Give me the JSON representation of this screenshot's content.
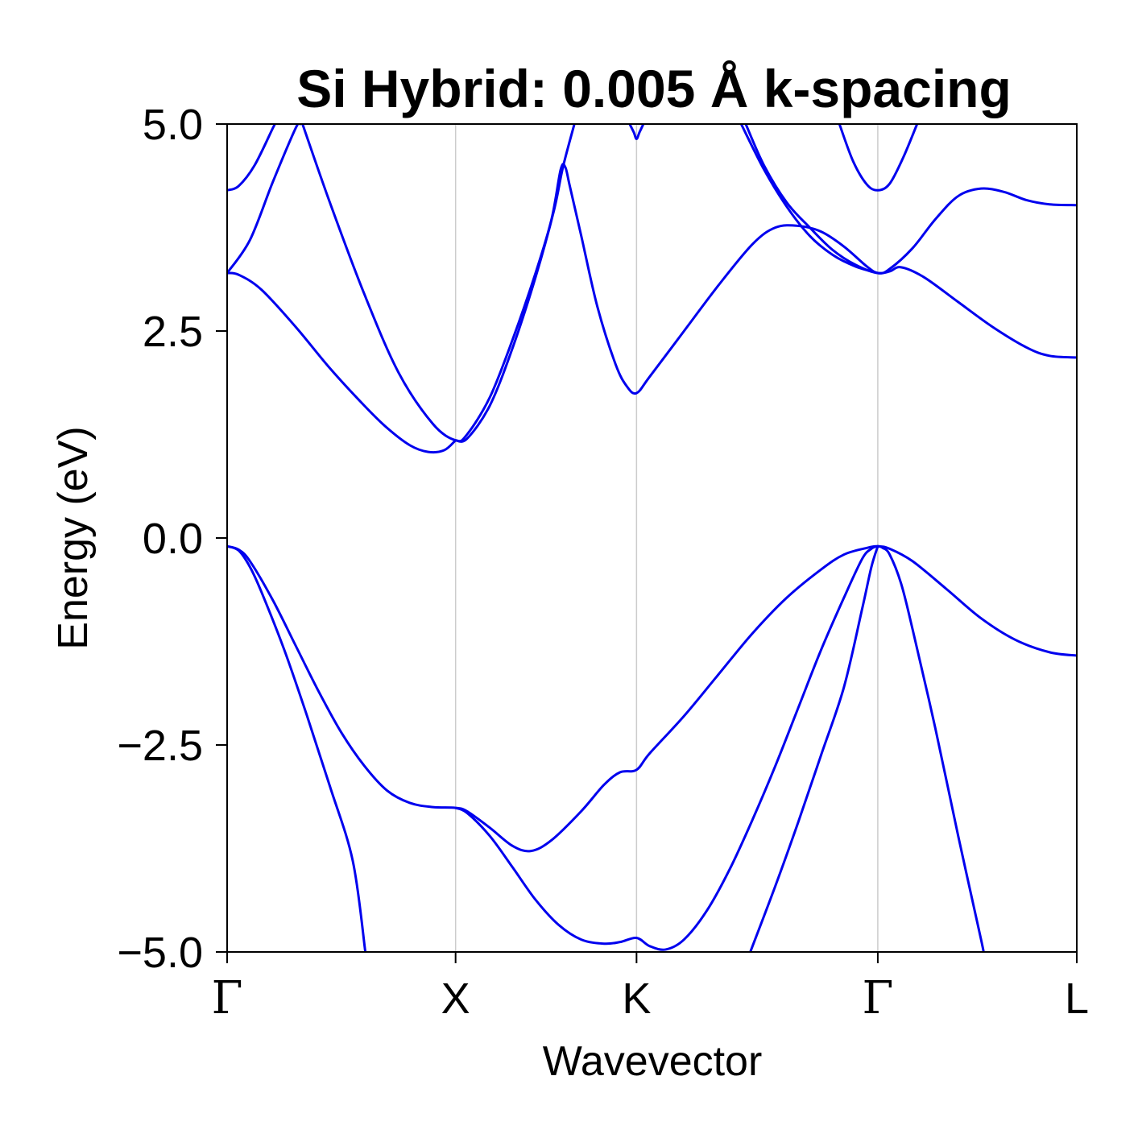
{
  "chart_data": {
    "type": "line",
    "title": "Si Hybrid: 0.005 Å k-spacing",
    "xlabel": "Wavevector",
    "ylabel": "Energy (eV)",
    "ylim": [
      -5.0,
      5.0
    ],
    "xlim": [
      0,
      3.719
    ],
    "yticks": [
      {
        "value": -5.0,
        "label": "−5.0"
      },
      {
        "value": -2.5,
        "label": "−2.5"
      },
      {
        "value": 0.0,
        "label": "0.0"
      },
      {
        "value": 2.5,
        "label": "2.5"
      },
      {
        "value": 5.0,
        "label": "5.0"
      }
    ],
    "kpoints": [
      {
        "label": "Γ",
        "x": 0.0,
        "font": "serif"
      },
      {
        "label": "X",
        "x": 1.0,
        "font": "sans"
      },
      {
        "label": "K",
        "x": 1.792,
        "font": "sans"
      },
      {
        "label": "Γ",
        "x": 2.848,
        "font": "serif"
      },
      {
        "label": "L",
        "x": 3.719,
        "font": "sans"
      }
    ],
    "line_color": "#0000ee",
    "grid_color": "#cccccc",
    "series": [
      {
        "values": [
          [
            0,
            -0.1
          ],
          [
            0.05,
            -0.15
          ],
          [
            0.1,
            -0.35
          ],
          [
            0.15,
            -0.65
          ],
          [
            0.25,
            -1.35
          ],
          [
            0.35,
            -2.15
          ],
          [
            0.45,
            -3.0
          ],
          [
            0.55,
            -3.9
          ],
          [
            0.605,
            -5.0
          ]
        ]
      },
      {
        "values": [
          [
            0,
            -0.1
          ],
          [
            0.05,
            -0.14
          ],
          [
            0.1,
            -0.28
          ],
          [
            0.2,
            -0.75
          ],
          [
            0.3,
            -1.3
          ],
          [
            0.4,
            -1.85
          ],
          [
            0.5,
            -2.35
          ],
          [
            0.6,
            -2.75
          ],
          [
            0.7,
            -3.05
          ],
          [
            0.8,
            -3.2
          ],
          [
            0.9,
            -3.25
          ],
          [
            1.0,
            -3.26
          ],
          [
            1.05,
            -3.3
          ],
          [
            1.15,
            -3.5
          ],
          [
            1.25,
            -3.72
          ],
          [
            1.33,
            -3.78
          ],
          [
            1.42,
            -3.65
          ],
          [
            1.55,
            -3.3
          ],
          [
            1.65,
            -2.98
          ],
          [
            1.72,
            -2.83
          ],
          [
            1.792,
            -2.8
          ],
          [
            1.85,
            -2.6
          ],
          [
            2.0,
            -2.15
          ],
          [
            2.15,
            -1.65
          ],
          [
            2.3,
            -1.15
          ],
          [
            2.45,
            -0.72
          ],
          [
            2.6,
            -0.38
          ],
          [
            2.7,
            -0.2
          ],
          [
            2.8,
            -0.12
          ],
          [
            2.848,
            -0.1
          ],
          [
            2.9,
            -0.13
          ],
          [
            3.0,
            -0.28
          ],
          [
            3.15,
            -0.62
          ],
          [
            3.3,
            -0.97
          ],
          [
            3.45,
            -1.23
          ],
          [
            3.6,
            -1.38
          ],
          [
            3.719,
            -1.42
          ]
        ]
      },
      {
        "values": [
          [
            1.0,
            -3.26
          ],
          [
            1.05,
            -3.32
          ],
          [
            1.15,
            -3.6
          ],
          [
            1.25,
            -3.98
          ],
          [
            1.35,
            -4.37
          ],
          [
            1.45,
            -4.67
          ],
          [
            1.55,
            -4.85
          ],
          [
            1.65,
            -4.9
          ],
          [
            1.72,
            -4.88
          ],
          [
            1.792,
            -4.83
          ],
          [
            1.85,
            -4.93
          ],
          [
            1.92,
            -4.97
          ],
          [
            2.0,
            -4.85
          ],
          [
            2.1,
            -4.5
          ],
          [
            2.2,
            -4.0
          ],
          [
            2.3,
            -3.4
          ],
          [
            2.4,
            -2.75
          ],
          [
            2.5,
            -2.05
          ],
          [
            2.6,
            -1.35
          ],
          [
            2.7,
            -0.72
          ],
          [
            2.78,
            -0.25
          ],
          [
            2.82,
            -0.13
          ],
          [
            2.848,
            -0.1
          ],
          [
            2.87,
            -0.12
          ],
          [
            2.9,
            -0.2
          ],
          [
            2.95,
            -0.55
          ],
          [
            3.0,
            -1.1
          ],
          [
            3.1,
            -2.3
          ],
          [
            3.2,
            -3.6
          ],
          [
            3.3,
            -4.85
          ],
          [
            3.31,
            -5.0
          ]
        ]
      },
      {
        "values": [
          [
            2.29,
            -5.0
          ],
          [
            2.4,
            -4.2
          ],
          [
            2.5,
            -3.43
          ],
          [
            2.6,
            -2.62
          ],
          [
            2.7,
            -1.8
          ],
          [
            2.78,
            -0.85
          ],
          [
            2.82,
            -0.35
          ],
          [
            2.848,
            -0.1
          ]
        ]
      },
      {
        "values": [
          [
            0,
            3.2
          ],
          [
            0.05,
            3.18
          ],
          [
            0.15,
            3.0
          ],
          [
            0.3,
            2.55
          ],
          [
            0.45,
            2.05
          ],
          [
            0.6,
            1.6
          ],
          [
            0.7,
            1.33
          ],
          [
            0.8,
            1.12
          ],
          [
            0.88,
            1.04
          ],
          [
            0.95,
            1.06
          ],
          [
            1.0,
            1.18
          ]
        ]
      },
      {
        "values": [
          [
            0,
            3.2
          ],
          [
            0.1,
            3.6
          ],
          [
            0.2,
            4.3
          ],
          [
            0.3,
            4.95
          ],
          [
            0.32,
            5.0
          ]
        ]
      },
      {
        "values": [
          [
            0.33,
            5.0
          ],
          [
            0.45,
            4.05
          ],
          [
            0.6,
            2.95
          ],
          [
            0.75,
            2.0
          ],
          [
            0.9,
            1.38
          ],
          [
            1.0,
            1.18
          ],
          [
            1.05,
            1.25
          ],
          [
            1.15,
            1.7
          ],
          [
            1.25,
            2.4
          ],
          [
            1.35,
            3.2
          ],
          [
            1.42,
            3.85
          ],
          [
            1.46,
            4.45
          ],
          [
            1.48,
            4.48
          ],
          [
            1.5,
            4.25
          ],
          [
            1.55,
            3.65
          ],
          [
            1.62,
            2.8
          ],
          [
            1.7,
            2.1
          ],
          [
            1.75,
            1.83
          ],
          [
            1.792,
            1.75
          ],
          [
            1.85,
            1.95
          ],
          [
            2.0,
            2.5
          ],
          [
            2.15,
            3.05
          ],
          [
            2.3,
            3.55
          ],
          [
            2.4,
            3.75
          ],
          [
            2.5,
            3.77
          ],
          [
            2.6,
            3.7
          ],
          [
            2.7,
            3.52
          ],
          [
            2.8,
            3.28
          ],
          [
            2.848,
            3.2
          ],
          [
            2.9,
            3.22
          ],
          [
            2.95,
            3.27
          ],
          [
            3.05,
            3.15
          ],
          [
            3.2,
            2.85
          ],
          [
            3.35,
            2.55
          ],
          [
            3.5,
            2.3
          ],
          [
            3.6,
            2.2
          ],
          [
            3.719,
            2.18
          ]
        ]
      },
      {
        "values": [
          [
            1.0,
            1.18
          ],
          [
            1.05,
            1.2
          ],
          [
            1.15,
            1.6
          ],
          [
            1.25,
            2.3
          ],
          [
            1.35,
            3.15
          ],
          [
            1.43,
            3.95
          ],
          [
            1.47,
            4.48
          ],
          [
            1.52,
            5.0
          ]
        ]
      },
      {
        "values": [
          [
            2.27,
            5.0
          ],
          [
            2.35,
            4.5
          ],
          [
            2.45,
            4.05
          ],
          [
            2.55,
            3.75
          ],
          [
            2.65,
            3.48
          ],
          [
            2.75,
            3.3
          ],
          [
            2.848,
            3.2
          ],
          [
            2.9,
            3.25
          ],
          [
            3.0,
            3.5
          ],
          [
            3.1,
            3.85
          ],
          [
            3.2,
            4.13
          ],
          [
            3.3,
            4.22
          ],
          [
            3.4,
            4.18
          ],
          [
            3.5,
            4.08
          ],
          [
            3.6,
            4.03
          ],
          [
            3.719,
            4.02
          ]
        ]
      },
      {
        "values": [
          [
            2.25,
            5.0
          ],
          [
            2.35,
            4.45
          ],
          [
            2.45,
            4.0
          ],
          [
            2.55,
            3.65
          ],
          [
            2.65,
            3.42
          ],
          [
            2.75,
            3.28
          ],
          [
            2.848,
            3.2
          ]
        ]
      },
      {
        "values": [
          [
            0,
            4.2
          ],
          [
            0.05,
            4.25
          ],
          [
            0.12,
            4.5
          ],
          [
            0.2,
            4.95
          ],
          [
            0.21,
            5.0
          ]
        ]
      },
      {
        "values": [
          [
            1.762,
            5.0
          ],
          [
            1.78,
            4.9
          ],
          [
            1.792,
            4.82
          ],
          [
            1.805,
            4.9
          ],
          [
            1.822,
            5.0
          ]
        ]
      },
      {
        "values": [
          [
            2.68,
            5.0
          ],
          [
            2.74,
            4.55
          ],
          [
            2.8,
            4.27
          ],
          [
            2.848,
            4.2
          ],
          [
            2.9,
            4.28
          ],
          [
            2.96,
            4.6
          ],
          [
            3.02,
            5.0
          ]
        ]
      }
    ]
  }
}
